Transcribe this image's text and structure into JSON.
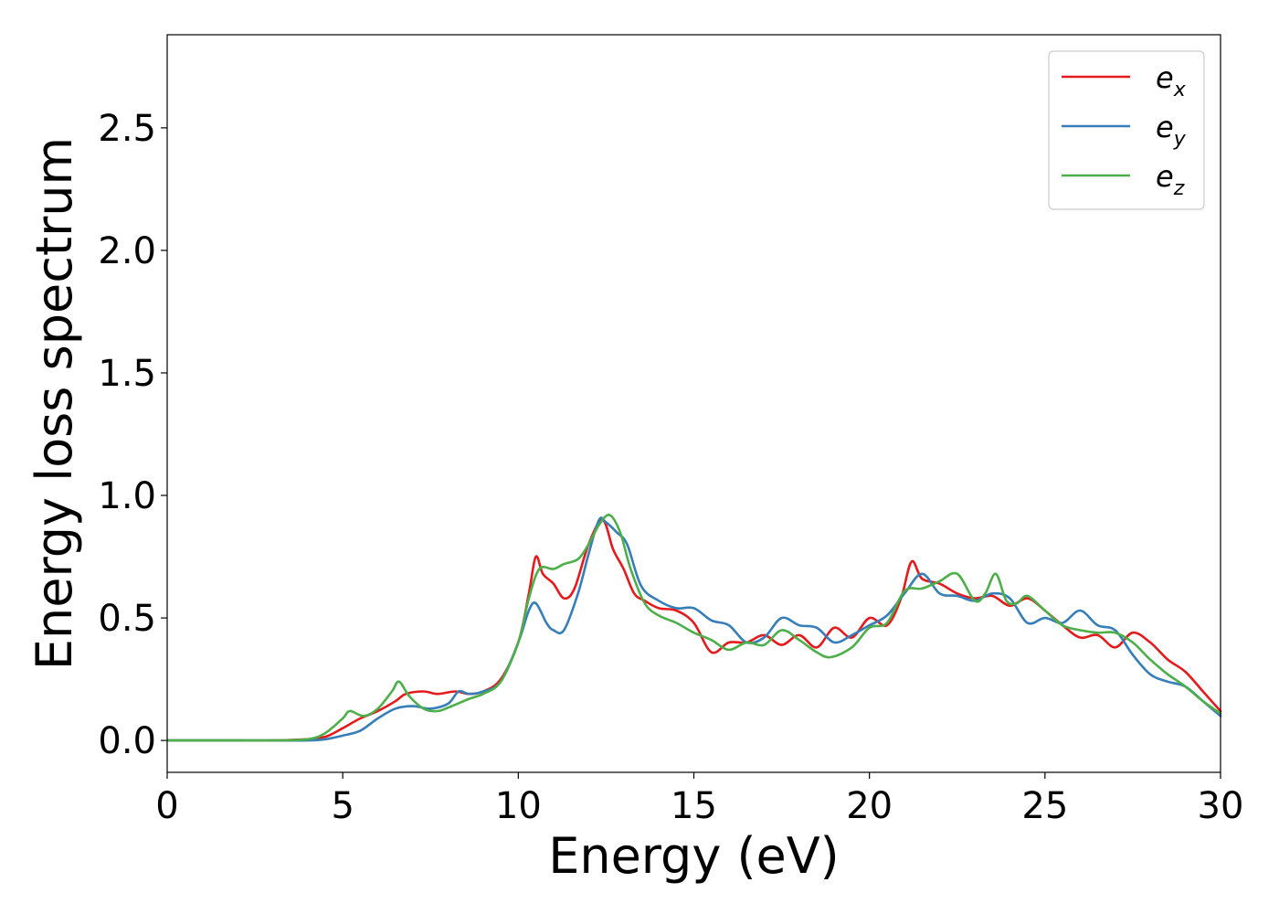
{
  "chart_data": {
    "type": "line",
    "xlabel": "Energy (eV)",
    "ylabel": "Energy loss spectrum",
    "xlim": [
      0,
      30
    ],
    "ylim": [
      -0.13,
      2.88
    ],
    "xticks": [
      0,
      5,
      10,
      15,
      20,
      25,
      30
    ],
    "xtick_labels": [
      "0",
      "5",
      "10",
      "15",
      "20",
      "25",
      "30"
    ],
    "yticks": [
      0.0,
      0.5,
      1.0,
      1.5,
      2.0,
      2.5
    ],
    "ytick_labels": [
      "0.0",
      "0.5",
      "1.0",
      "1.5",
      "2.0",
      "2.5"
    ],
    "grid": false,
    "legend_position": "top-right",
    "series": [
      {
        "name": "e_x",
        "label_base": "e",
        "label_sub": "x",
        "color": "#e41a1c",
        "x": [
          0,
          1,
          2,
          3,
          4,
          4.3,
          4.6,
          5,
          5.5,
          6,
          6.5,
          6.8,
          7.3,
          7.7,
          8.2,
          8.6,
          9,
          9.5,
          10,
          10.3,
          10.5,
          10.7,
          11,
          11.3,
          11.6,
          12,
          12.4,
          12.7,
          13,
          13.3,
          13.6,
          14,
          14.5,
          15,
          15.5,
          16,
          16.5,
          17,
          17.5,
          18,
          18.5,
          19,
          19.5,
          20,
          20.5,
          20.9,
          21.2,
          21.5,
          22,
          22.5,
          23,
          23.5,
          24,
          24.5,
          25,
          25.5,
          26,
          26.5,
          27,
          27.5,
          28,
          28.5,
          29,
          29.5,
          30
        ],
        "y": [
          0,
          0,
          0,
          0,
          0.005,
          0.01,
          0.02,
          0.05,
          0.09,
          0.12,
          0.16,
          0.19,
          0.2,
          0.19,
          0.2,
          0.19,
          0.2,
          0.25,
          0.4,
          0.6,
          0.75,
          0.68,
          0.64,
          0.58,
          0.62,
          0.8,
          0.9,
          0.78,
          0.7,
          0.6,
          0.57,
          0.54,
          0.53,
          0.48,
          0.36,
          0.4,
          0.4,
          0.43,
          0.39,
          0.43,
          0.38,
          0.46,
          0.42,
          0.5,
          0.47,
          0.58,
          0.73,
          0.66,
          0.64,
          0.6,
          0.58,
          0.59,
          0.55,
          0.58,
          0.53,
          0.47,
          0.42,
          0.43,
          0.38,
          0.44,
          0.4,
          0.33,
          0.28,
          0.2,
          0.12
        ]
      },
      {
        "name": "e_y",
        "label_base": "e",
        "label_sub": "y",
        "color": "#377eb8",
        "x": [
          0,
          1,
          2,
          3,
          4,
          4.5,
          5,
          5.5,
          6,
          6.5,
          7,
          7.5,
          8,
          8.3,
          8.6,
          9,
          9.5,
          10,
          10.3,
          10.5,
          10.8,
          11,
          11.3,
          11.7,
          12,
          12.3,
          12.5,
          12.8,
          13.1,
          13.5,
          14,
          14.5,
          15,
          15.5,
          16,
          16.5,
          17,
          17.5,
          18,
          18.5,
          19,
          19.5,
          20,
          20.5,
          21,
          21.5,
          22,
          22.5,
          23,
          23.5,
          24,
          24.5,
          25,
          25.5,
          26,
          26.5,
          27,
          27.5,
          28,
          28.5,
          29,
          29.5,
          30
        ],
        "y": [
          0,
          0,
          0,
          0,
          0,
          0.005,
          0.02,
          0.04,
          0.09,
          0.13,
          0.14,
          0.13,
          0.15,
          0.2,
          0.19,
          0.2,
          0.24,
          0.4,
          0.53,
          0.56,
          0.48,
          0.45,
          0.45,
          0.6,
          0.76,
          0.9,
          0.89,
          0.85,
          0.8,
          0.63,
          0.57,
          0.54,
          0.54,
          0.49,
          0.47,
          0.4,
          0.42,
          0.5,
          0.47,
          0.46,
          0.4,
          0.43,
          0.47,
          0.51,
          0.6,
          0.68,
          0.6,
          0.59,
          0.57,
          0.6,
          0.58,
          0.48,
          0.5,
          0.48,
          0.53,
          0.47,
          0.45,
          0.35,
          0.27,
          0.24,
          0.22,
          0.16,
          0.1
        ]
      },
      {
        "name": "e_z",
        "label_base": "e",
        "label_sub": "z",
        "color": "#4daf4a",
        "x": [
          0,
          1,
          2,
          3,
          4,
          4.5,
          5,
          5.2,
          5.6,
          6,
          6.4,
          6.6,
          6.9,
          7.3,
          7.7,
          8.1,
          8.6,
          9,
          9.5,
          10,
          10.3,
          10.6,
          11,
          11.3,
          11.7,
          12,
          12.3,
          12.6,
          12.9,
          13.2,
          13.6,
          14,
          14.5,
          15,
          15.5,
          16,
          16.5,
          17,
          17.5,
          18,
          18.5,
          18.9,
          19.5,
          20,
          20.5,
          21,
          21.5,
          22,
          22.5,
          23,
          23.3,
          23.6,
          23.9,
          24.2,
          24.5,
          25,
          25.5,
          26,
          26.5,
          27,
          27.5,
          28,
          28.5,
          29,
          29.5,
          30
        ],
        "y": [
          0,
          0,
          0,
          0,
          0.005,
          0.03,
          0.09,
          0.12,
          0.1,
          0.13,
          0.2,
          0.24,
          0.18,
          0.13,
          0.12,
          0.14,
          0.17,
          0.19,
          0.24,
          0.4,
          0.58,
          0.7,
          0.7,
          0.72,
          0.74,
          0.8,
          0.88,
          0.92,
          0.85,
          0.7,
          0.56,
          0.51,
          0.48,
          0.44,
          0.41,
          0.37,
          0.4,
          0.39,
          0.45,
          0.41,
          0.36,
          0.34,
          0.38,
          0.46,
          0.48,
          0.61,
          0.62,
          0.65,
          0.68,
          0.57,
          0.6,
          0.68,
          0.57,
          0.56,
          0.59,
          0.53,
          0.47,
          0.45,
          0.44,
          0.44,
          0.4,
          0.33,
          0.27,
          0.22,
          0.16,
          0.11
        ]
      }
    ]
  }
}
